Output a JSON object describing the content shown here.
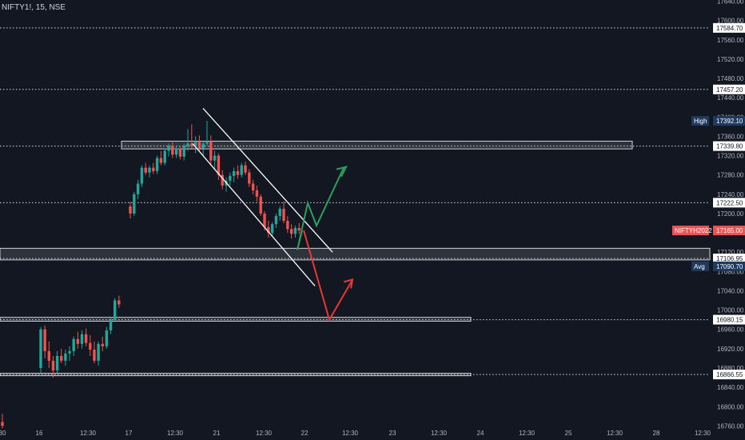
{
  "symbol_line": "NIFTY1!, 15, NSE",
  "colors": {
    "background": "#131722",
    "text": "#b2b5be",
    "up": "#26a69a",
    "down": "#ef5350",
    "grid_line": "#ffffff",
    "badge_dark": "#1e3a5f",
    "badge_red": "#ef5350",
    "arrow_green": "#2e9e5b",
    "arrow_red": "#e53935",
    "channel": "#ffffff"
  },
  "chart_data": {
    "type": "candlestick",
    "title": "",
    "ylim": [
      16755,
      17645
    ],
    "y_ticks": [
      "17640.00",
      "17600.00",
      "17560.00",
      "17520.00",
      "17480.00",
      "17440.00",
      "17400.00",
      "17360.00",
      "17320.00",
      "17280.00",
      "17240.00",
      "17200.00",
      "17160.00",
      "17120.00",
      "17080.00",
      "17040.00",
      "17000.00",
      "16960.00",
      "16920.00",
      "16880.00",
      "16840.00",
      "16800.00",
      "16760.00"
    ],
    "x_ticks": [
      "30",
      "16",
      "12:30",
      "17",
      "12:30",
      "21",
      "12:30",
      "22",
      "12:30",
      "23",
      "12:30",
      "24",
      "12:30",
      "25",
      "12:30",
      "28",
      "12:30"
    ],
    "horizontal_levels": [
      {
        "label": "17584.70",
        "value": 17584.7
      },
      {
        "label": "17457.20",
        "value": 17457.2
      },
      {
        "label": "17339.80",
        "value": 17339.8
      },
      {
        "label": "17222.50",
        "value": 17222.5
      },
      {
        "label": "17106.95",
        "value": 17106.95
      },
      {
        "label": "16980.15",
        "value": 16980.15
      },
      {
        "label": "16866.55",
        "value": 16866.55
      }
    ],
    "badges": [
      {
        "tag": "High",
        "label": "17392.10",
        "value": 17392.1,
        "style": "dark"
      },
      {
        "tag": "NIFTYH2022",
        "label": "17165.00",
        "value": 17165.0,
        "style": "red"
      },
      {
        "tag": "Avg",
        "label": "17090.70",
        "value": 17090.7,
        "style": "dark"
      }
    ],
    "zones": [
      {
        "from": "16",
        "to": "25",
        "low": 17334,
        "high": 17350
      },
      {
        "from": "30",
        "to": "28",
        "low": 17104,
        "high": 17128
      },
      {
        "from": "30",
        "to": "23",
        "low": 16977,
        "high": 16985
      },
      {
        "from": "30",
        "to": "23",
        "low": 16864,
        "high": 16869
      }
    ],
    "channel_lines": [
      {
        "x1": "21",
        "y1": 17418,
        "x2": "22",
        "y2": 17120
      },
      {
        "x1": "17",
        "y1": 17345,
        "x2": "22",
        "y2": 17050
      }
    ],
    "projection_green": [
      [
        17165,
        "22"
      ],
      [
        17125,
        "22"
      ],
      [
        17220,
        "22"
      ],
      [
        17175,
        "22"
      ],
      [
        17295,
        "23"
      ]
    ],
    "projection_red": [
      [
        17165,
        "22"
      ],
      [
        16980,
        "22"
      ],
      [
        17060,
        "23"
      ]
    ],
    "candles": [
      {
        "o": 16768,
        "h": 16785,
        "l": 16755,
        "c": 16760
      },
      {
        "o": 16880,
        "h": 16965,
        "l": 16870,
        "c": 16960
      },
      {
        "o": 16960,
        "h": 16968,
        "l": 16900,
        "c": 16915
      },
      {
        "o": 16915,
        "h": 16935,
        "l": 16880,
        "c": 16895
      },
      {
        "o": 16895,
        "h": 16905,
        "l": 16860,
        "c": 16875
      },
      {
        "o": 16875,
        "h": 16915,
        "l": 16870,
        "c": 16905
      },
      {
        "o": 16905,
        "h": 16920,
        "l": 16890,
        "c": 16895
      },
      {
        "o": 16895,
        "h": 16918,
        "l": 16885,
        "c": 16910
      },
      {
        "o": 16910,
        "h": 16925,
        "l": 16895,
        "c": 16915
      },
      {
        "o": 16915,
        "h": 16945,
        "l": 16905,
        "c": 16940
      },
      {
        "o": 16940,
        "h": 16955,
        "l": 16920,
        "c": 16930
      },
      {
        "o": 16930,
        "h": 16958,
        "l": 16920,
        "c": 16950
      },
      {
        "o": 16950,
        "h": 16962,
        "l": 16925,
        "c": 16932
      },
      {
        "o": 16932,
        "h": 16948,
        "l": 16905,
        "c": 16918
      },
      {
        "o": 16918,
        "h": 16935,
        "l": 16890,
        "c": 16895
      },
      {
        "o": 16895,
        "h": 16935,
        "l": 16885,
        "c": 16930
      },
      {
        "o": 16930,
        "h": 16945,
        "l": 16915,
        "c": 16925
      },
      {
        "o": 16925,
        "h": 16965,
        "l": 16920,
        "c": 16958
      },
      {
        "o": 16958,
        "h": 16985,
        "l": 16950,
        "c": 16980
      },
      {
        "o": 16980,
        "h": 17025,
        "l": 16975,
        "c": 17020
      },
      {
        "o": 17020,
        "h": 17030,
        "l": 17005,
        "c": 17012
      },
      {
        "o": 17215,
        "h": 17225,
        "l": 17190,
        "c": 17200
      },
      {
        "o": 17200,
        "h": 17245,
        "l": 17195,
        "c": 17240
      },
      {
        "o": 17240,
        "h": 17270,
        "l": 17230,
        "c": 17262
      },
      {
        "o": 17262,
        "h": 17300,
        "l": 17255,
        "c": 17295
      },
      {
        "o": 17295,
        "h": 17305,
        "l": 17280,
        "c": 17285
      },
      {
        "o": 17285,
        "h": 17300,
        "l": 17275,
        "c": 17295
      },
      {
        "o": 17295,
        "h": 17305,
        "l": 17282,
        "c": 17288
      },
      {
        "o": 17288,
        "h": 17320,
        "l": 17282,
        "c": 17315
      },
      {
        "o": 17315,
        "h": 17330,
        "l": 17300,
        "c": 17305
      },
      {
        "o": 17305,
        "h": 17335,
        "l": 17300,
        "c": 17330
      },
      {
        "o": 17330,
        "h": 17345,
        "l": 17318,
        "c": 17340
      },
      {
        "o": 17340,
        "h": 17348,
        "l": 17315,
        "c": 17322
      },
      {
        "o": 17322,
        "h": 17340,
        "l": 17315,
        "c": 17335
      },
      {
        "o": 17335,
        "h": 17338,
        "l": 17312,
        "c": 17318
      },
      {
        "o": 17318,
        "h": 17345,
        "l": 17310,
        "c": 17340
      },
      {
        "o": 17340,
        "h": 17375,
        "l": 17330,
        "c": 17345
      },
      {
        "o": 17345,
        "h": 17385,
        "l": 17335,
        "c": 17340
      },
      {
        "o": 17340,
        "h": 17360,
        "l": 17325,
        "c": 17350
      },
      {
        "o": 17350,
        "h": 17362,
        "l": 17330,
        "c": 17335
      },
      {
        "o": 17335,
        "h": 17350,
        "l": 17320,
        "c": 17345
      },
      {
        "o": 17345,
        "h": 17392,
        "l": 17340,
        "c": 17350
      },
      {
        "o": 17350,
        "h": 17362,
        "l": 17300,
        "c": 17310
      },
      {
        "o": 17310,
        "h": 17330,
        "l": 17290,
        "c": 17320
      },
      {
        "o": 17320,
        "h": 17325,
        "l": 17270,
        "c": 17280
      },
      {
        "o": 17280,
        "h": 17290,
        "l": 17250,
        "c": 17258
      },
      {
        "o": 17258,
        "h": 17275,
        "l": 17245,
        "c": 17268
      },
      {
        "o": 17268,
        "h": 17285,
        "l": 17258,
        "c": 17278
      },
      {
        "o": 17278,
        "h": 17295,
        "l": 17265,
        "c": 17288
      },
      {
        "o": 17288,
        "h": 17300,
        "l": 17272,
        "c": 17280
      },
      {
        "o": 17280,
        "h": 17305,
        "l": 17275,
        "c": 17300
      },
      {
        "o": 17300,
        "h": 17308,
        "l": 17280,
        "c": 17285
      },
      {
        "o": 17285,
        "h": 17292,
        "l": 17255,
        "c": 17262
      },
      {
        "o": 17262,
        "h": 17270,
        "l": 17240,
        "c": 17248
      },
      {
        "o": 17248,
        "h": 17258,
        "l": 17225,
        "c": 17235
      },
      {
        "o": 17235,
        "h": 17240,
        "l": 17195,
        "c": 17200
      },
      {
        "o": 17200,
        "h": 17205,
        "l": 17165,
        "c": 17172
      },
      {
        "o": 17172,
        "h": 17185,
        "l": 17150,
        "c": 17160
      },
      {
        "o": 17160,
        "h": 17182,
        "l": 17152,
        "c": 17178
      },
      {
        "o": 17178,
        "h": 17200,
        "l": 17170,
        "c": 17195
      },
      {
        "o": 17195,
        "h": 17215,
        "l": 17185,
        "c": 17210
      },
      {
        "o": 17210,
        "h": 17225,
        "l": 17180,
        "c": 17185
      },
      {
        "o": 17185,
        "h": 17195,
        "l": 17160,
        "c": 17168
      },
      {
        "o": 17168,
        "h": 17178,
        "l": 17148,
        "c": 17158
      },
      {
        "o": 17158,
        "h": 17175,
        "l": 17150,
        "c": 17170
      },
      {
        "o": 17170,
        "h": 17180,
        "l": 17158,
        "c": 17165
      }
    ]
  }
}
